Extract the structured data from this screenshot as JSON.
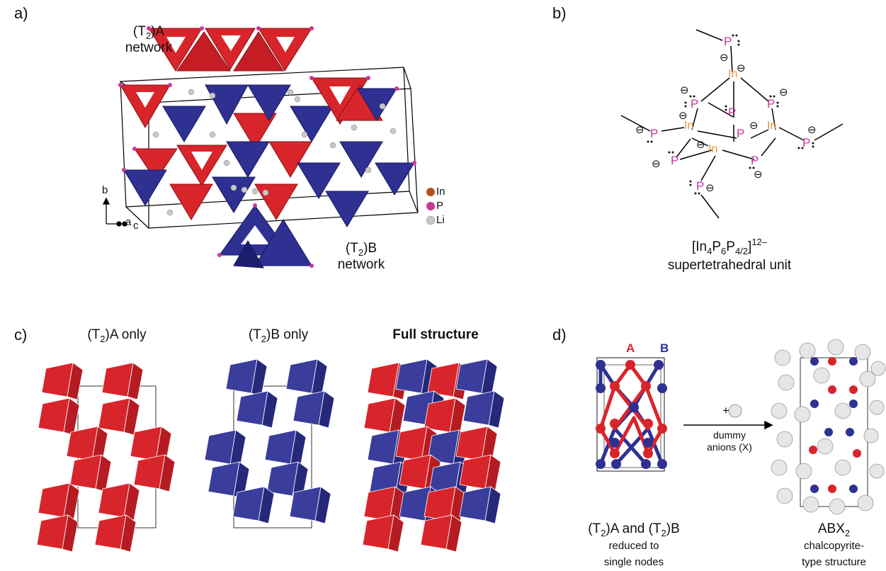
{
  "panels": {
    "a": {
      "letter": "a)",
      "label_top_T": "(T",
      "label_top_sub": "2",
      "label_top_sup": ")A",
      "label_top_word": "network",
      "label_bot_T": "(T",
      "label_bot_sub": "2",
      "label_bot_sup": ")B",
      "label_bot_word": "network",
      "axis_b": "b",
      "axis_a": "a",
      "axis_c": "c",
      "legend": [
        "In",
        "P",
        "Li"
      ]
    },
    "b": {
      "letter": "b)",
      "formula_main": "[In",
      "formula_sub1": "4",
      "formula_p": "P",
      "formula_sub2": "6",
      "formula_p2": "P",
      "formula_sub3": "4/2",
      "formula_close": "]",
      "formula_sup": "12–",
      "caption": "supertetrahedral unit",
      "atom_in": "In",
      "atom_p": "P",
      "charge": "⊖"
    },
    "c": {
      "letter": "c)",
      "col1_T": "(T",
      "col1_sub": "2",
      "col1_sup": ")A",
      "col1_word": " only",
      "col2_T": "(T",
      "col2_sub": "2",
      "col2_sup": ")B",
      "col2_word": " only",
      "col3": "Full structure"
    },
    "d": {
      "letter": "d)",
      "label_A": "A",
      "label_B": "B",
      "plus": "+",
      "arrow_text1": "dummy",
      "arrow_text2": "anions (X)",
      "left_caption_a": "(T",
      "left_caption_sub1": "2",
      "left_caption_sup1": ")A",
      "left_caption_and": " and (T",
      "left_caption_sub2": "2",
      "left_caption_sup2": ")B",
      "left_caption_l2": "reduced to",
      "left_caption_l3": "single nodes",
      "right_caption_abx": "ABX",
      "right_caption_sub": "2",
      "right_caption_l2": "chalcopyrite-",
      "right_caption_l3": "type structure"
    }
  },
  "colors": {
    "red": "#d8252b",
    "blue": "#2e3192",
    "magenta": "#c8379a",
    "orange": "#e8913a",
    "li_grey": "#bdbdbd"
  }
}
